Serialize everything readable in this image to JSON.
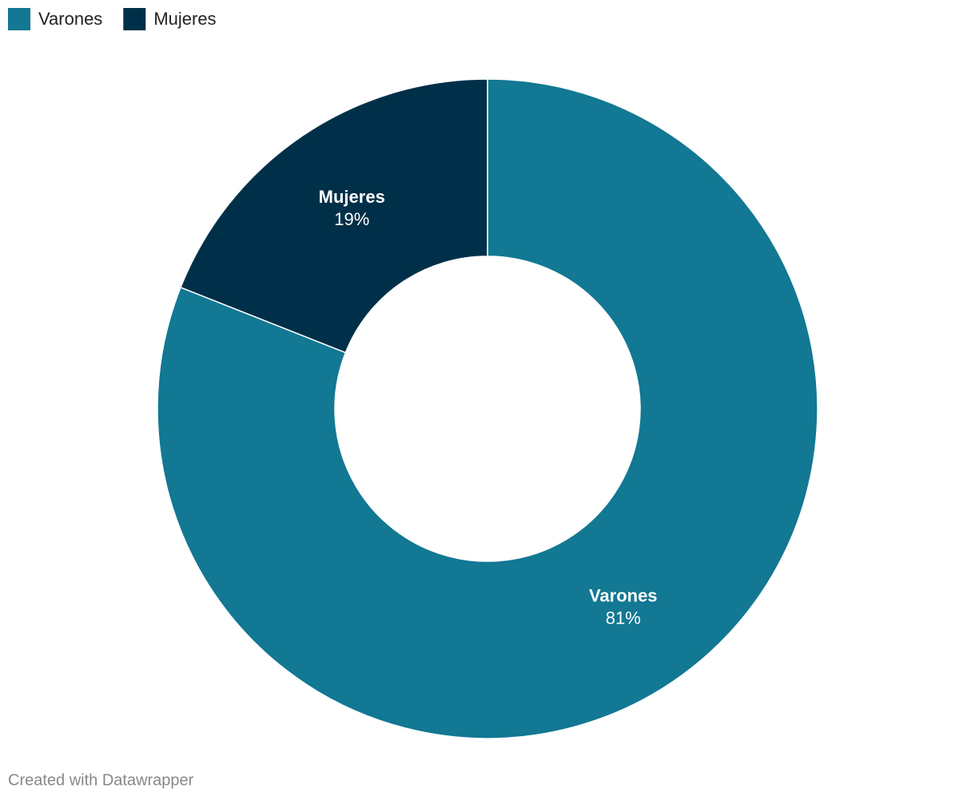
{
  "chart_data": {
    "type": "donut",
    "categories": [
      "Varones",
      "Mujeres"
    ],
    "values": [
      81,
      19
    ],
    "value_labels": [
      "81%",
      "19%"
    ],
    "colors": [
      "#127893",
      "#003049"
    ],
    "legend": "top-left",
    "footer": "Created with Datawrapper"
  }
}
